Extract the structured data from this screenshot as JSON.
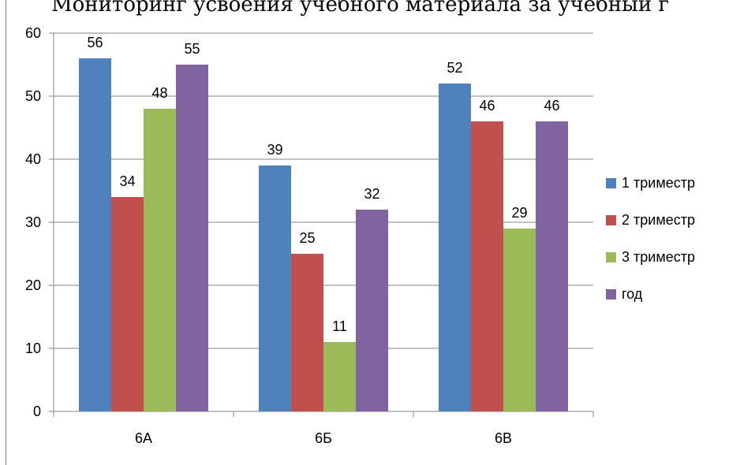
{
  "chart_data": {
    "type": "bar",
    "title": "Мониторинг усвоения учебного материала за учебный г",
    "categories": [
      "6А",
      "6Б",
      "6В"
    ],
    "series": [
      {
        "name": "1 триместр",
        "color": "#4F81BD",
        "values": [
          56,
          39,
          52
        ]
      },
      {
        "name": "2 триместр",
        "color": "#C0504D",
        "values": [
          34,
          25,
          46
        ]
      },
      {
        "name": "3 триместр",
        "color": "#9BBB59",
        "values": [
          48,
          11,
          29
        ]
      },
      {
        "name": "год",
        "color": "#8064A2",
        "values": [
          55,
          32,
          46
        ]
      }
    ],
    "ylim": [
      0,
      60
    ],
    "yticks": [
      0,
      10,
      20,
      30,
      40,
      50,
      60
    ],
    "grid": true,
    "legend": "right"
  }
}
